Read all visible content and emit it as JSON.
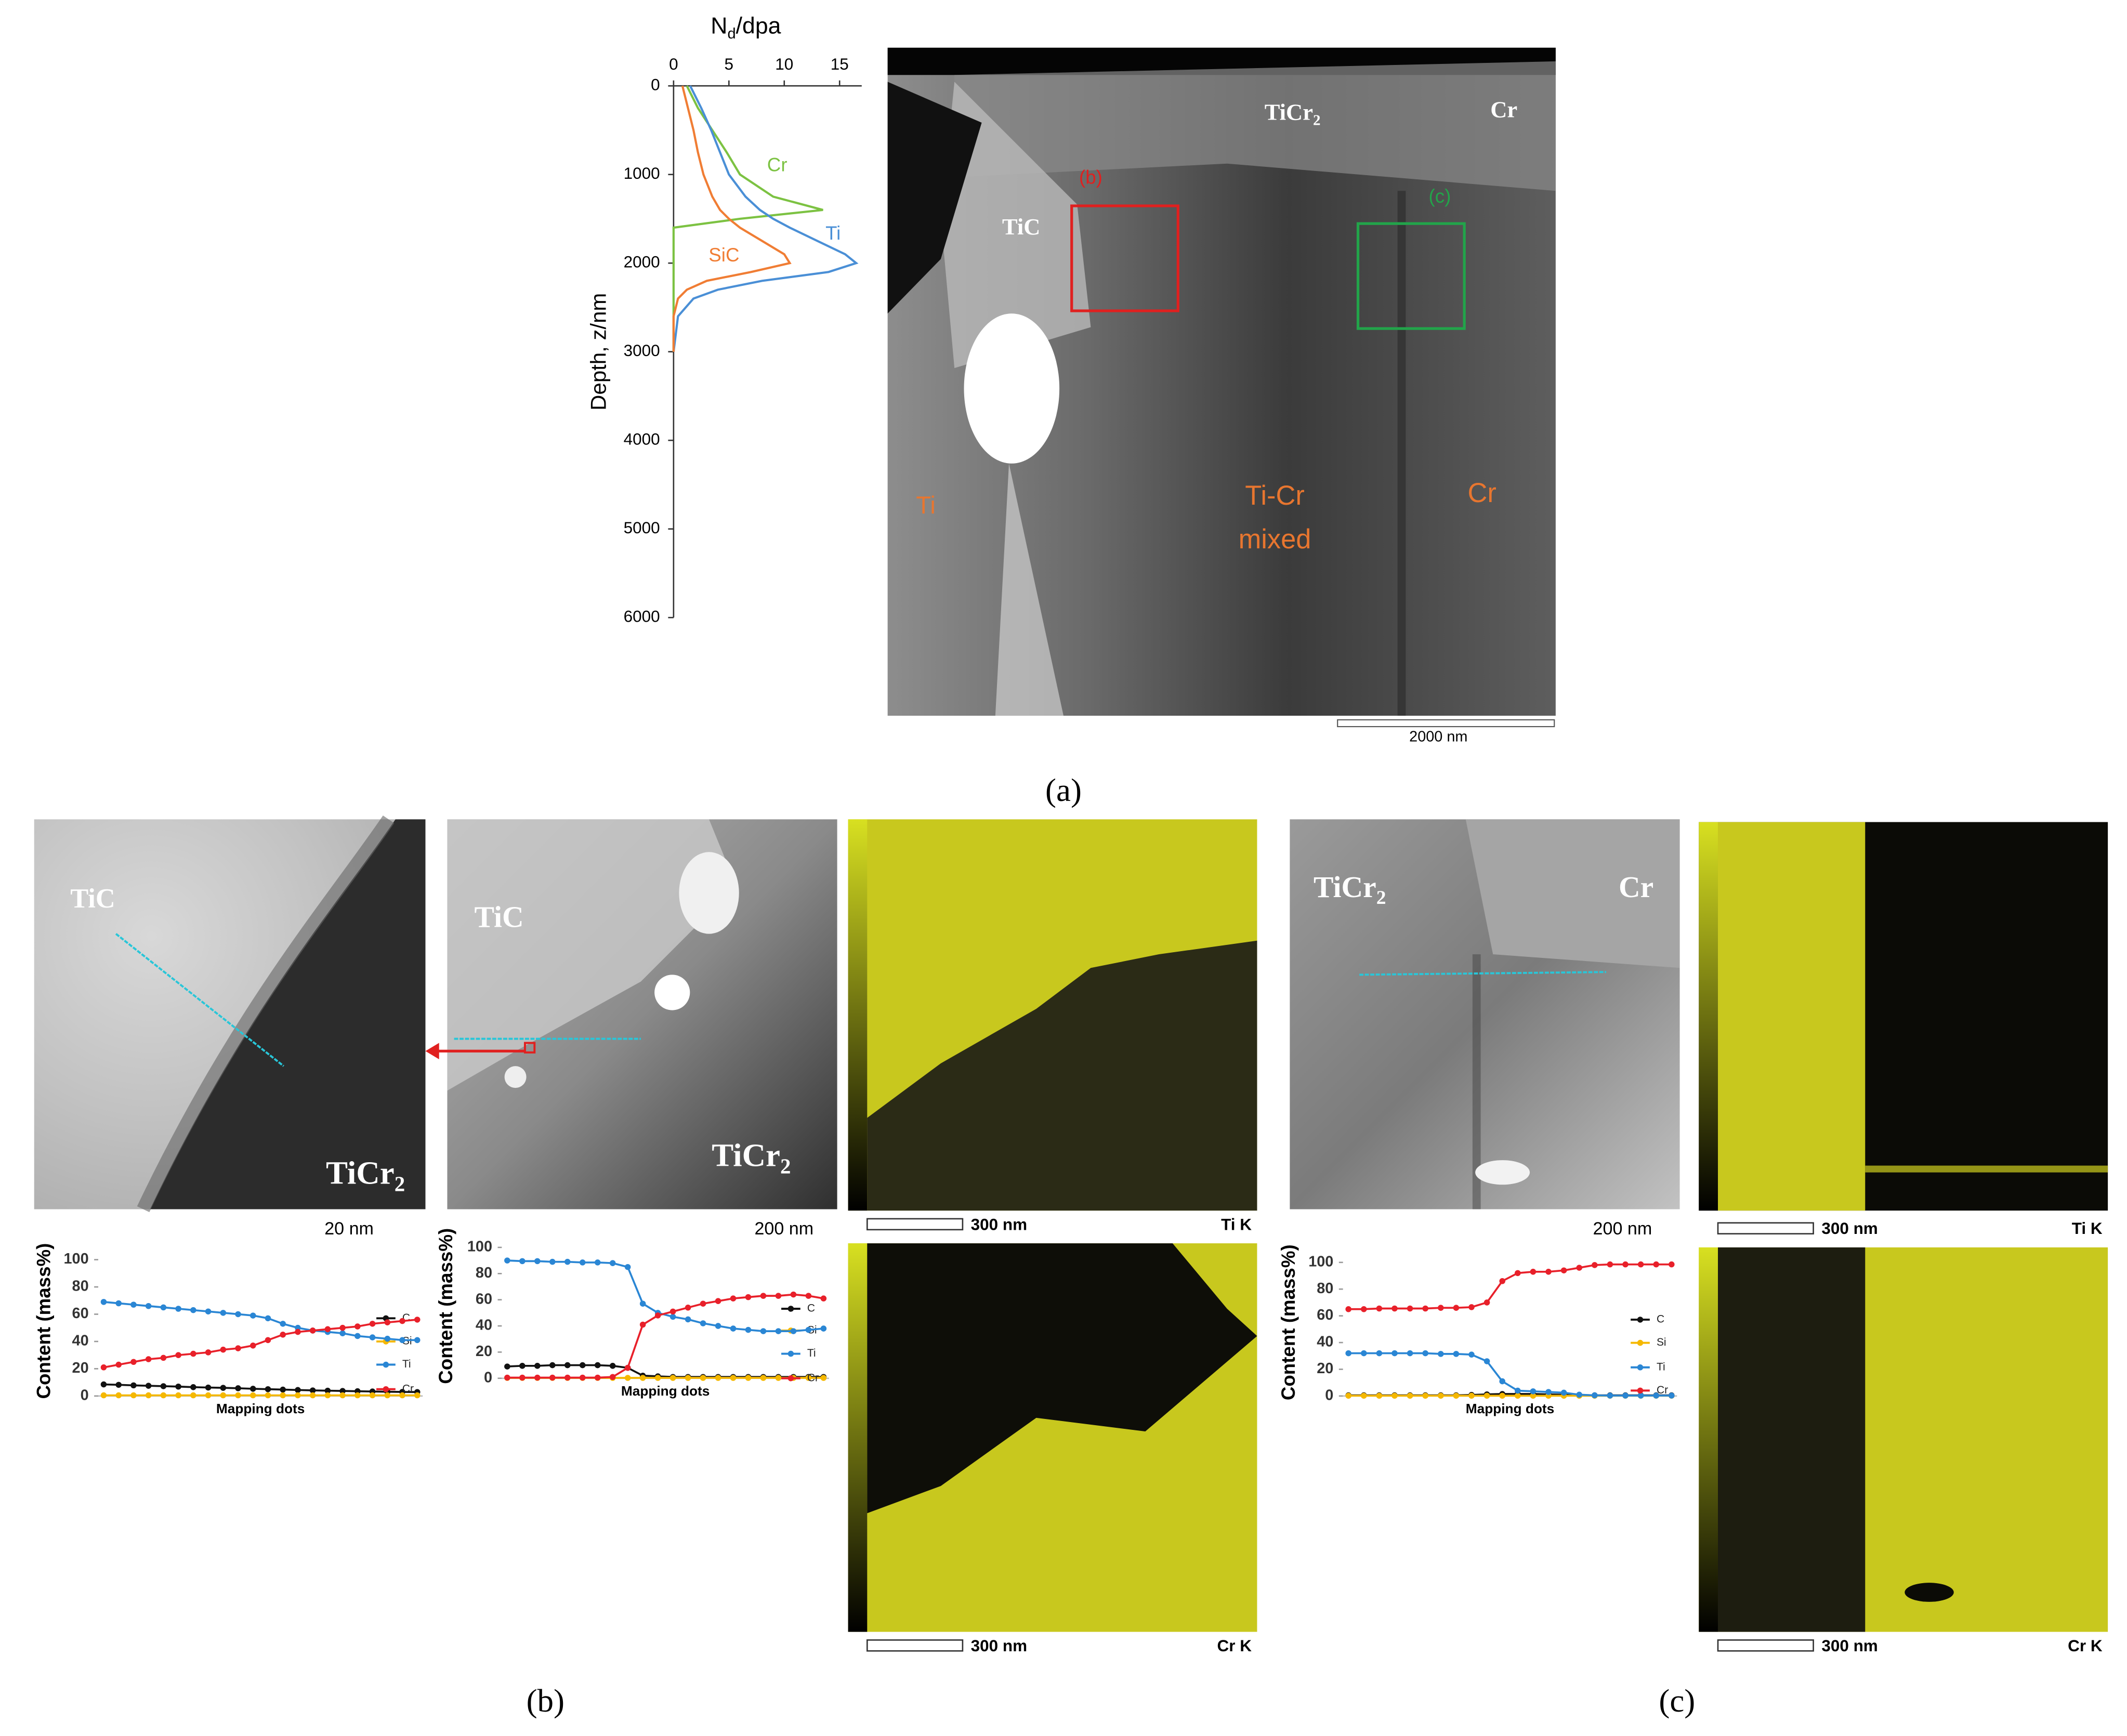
{
  "chart_data": [
    {
      "type": "line",
      "orientation": "vertical",
      "xlabel": "Depth, z/nm",
      "ylabel": {
        "text": "N",
        "sub": "d",
        "rest": "/dpa"
      },
      "x": [
        0,
        250,
        500,
        750,
        1000,
        1250,
        1400,
        1500,
        1600,
        1750,
        1900,
        2000,
        2100,
        2200,
        2300,
        2400,
        2600,
        3000
      ],
      "xlim": [
        0,
        6000
      ],
      "xticks": [
        0,
        1000,
        2000,
        3000,
        4000,
        5000,
        6000
      ],
      "ylim": [
        0,
        17
      ],
      "yticks": [
        0,
        5,
        10,
        15
      ],
      "series": [
        {
          "name": "Cr",
          "color": "#7cc242",
          "values": [
            1.2,
            2.2,
            3.5,
            4.8,
            6.0,
            9.0,
            13.5,
            6.0,
            0,
            0,
            0,
            0,
            0,
            0,
            0,
            0,
            0,
            0
          ]
        },
        {
          "name": "Ti",
          "color": "#4a8fd6",
          "values": [
            1.5,
            2.5,
            3.4,
            4.2,
            5.0,
            6.5,
            7.8,
            9,
            10.5,
            13,
            15.5,
            16.5,
            14,
            8,
            4,
            1.8,
            0.4,
            0
          ]
        },
        {
          "name": "SiC",
          "color": "#f07d34",
          "values": [
            0.8,
            1.3,
            1.8,
            2.2,
            2.7,
            3.5,
            4.2,
            5,
            6,
            8,
            10,
            10.5,
            7,
            3,
            1.2,
            0.4,
            0,
            0
          ]
        }
      ]
    },
    {
      "type": "line",
      "xlabel": "Mapping dots",
      "ylabel": "Content (mass%)",
      "ylim": [
        0,
        100
      ],
      "yticks": [
        0,
        20,
        40,
        60,
        80,
        100
      ],
      "series": [
        {
          "name": "C",
          "color": "#111111",
          "values": [
            8.5,
            8.2,
            7.8,
            7.5,
            7.2,
            6.9,
            6.5,
            6.2,
            6,
            5.7,
            5.3,
            5,
            4.7,
            4.4,
            4.1,
            3.9,
            3.7,
            3.5,
            3.3,
            3.1,
            3,
            2.9
          ]
        },
        {
          "name": "Si",
          "color": "#f5b800",
          "values": [
            0.5,
            0.5,
            0.5,
            0.5,
            0.5,
            0.5,
            0.5,
            0.5,
            0.5,
            0.5,
            0.5,
            0.5,
            0.5,
            0.5,
            0.5,
            0.5,
            0.5,
            0.5,
            0.5,
            0.5,
            0.5,
            0.5
          ]
        },
        {
          "name": "Ti",
          "color": "#2a86d4",
          "values": [
            69,
            68,
            67,
            66,
            65,
            64,
            63,
            62,
            61,
            60,
            59,
            57,
            53,
            50,
            48,
            47,
            46,
            44,
            43,
            42,
            41,
            41
          ]
        },
        {
          "name": "Cr",
          "color": "#e8202a",
          "values": [
            21,
            23,
            25,
            27,
            28,
            30,
            31,
            32,
            34,
            35,
            37,
            41,
            45,
            47,
            48,
            49,
            50,
            51,
            53,
            54,
            55,
            56
          ]
        }
      ]
    },
    {
      "type": "line",
      "xlabel": "Mapping dots",
      "ylabel": "Content (mass%)",
      "ylim": [
        0,
        100
      ],
      "yticks": [
        0,
        20,
        40,
        60,
        80,
        100
      ],
      "series": [
        {
          "name": "C",
          "color": "#111111",
          "values": [
            9,
            9.5,
            9.5,
            10,
            10,
            10,
            10,
            9.5,
            8,
            2,
            1.5,
            1,
            1,
            1,
            1,
            1,
            1,
            1,
            1,
            1,
            1,
            1
          ]
        },
        {
          "name": "Si",
          "color": "#f5b800",
          "values": [
            0.3,
            0.3,
            0.3,
            0.3,
            0.3,
            0.3,
            0.3,
            0.3,
            0.3,
            0.3,
            0.3,
            0.3,
            0.3,
            0.3,
            0.3,
            0.3,
            0.3,
            0.3,
            0.3,
            0.3,
            0.3,
            0.3
          ]
        },
        {
          "name": "Ti",
          "color": "#2a86d4",
          "values": [
            90,
            89.5,
            89.5,
            89,
            89,
            88.5,
            88.5,
            88,
            85,
            57,
            50,
            47,
            45,
            42,
            40,
            38,
            37,
            36,
            36,
            36,
            37,
            38
          ]
        },
        {
          "name": "Cr",
          "color": "#e8202a",
          "values": [
            0.5,
            0.5,
            0.5,
            0.5,
            0.5,
            0.5,
            0.5,
            1,
            8,
            41,
            48,
            51,
            54,
            57,
            59,
            61,
            62,
            63,
            63,
            64,
            63,
            61
          ]
        }
      ]
    },
    {
      "type": "line",
      "xlabel": "Mapping dots",
      "ylabel": "Content (mass%)",
      "ylim": [
        0,
        100
      ],
      "yticks": [
        0,
        20,
        40,
        60,
        80,
        100
      ],
      "series": [
        {
          "name": "C",
          "color": "#111111",
          "values": [
            0.5,
            0.5,
            0.5,
            0.5,
            0.5,
            0.5,
            0.5,
            0.5,
            0.8,
            1.2,
            1.5,
            1.5,
            1.5,
            1.2,
            1,
            0.8,
            0.5,
            0.5,
            0.5,
            0.5,
            0.5,
            0.5
          ]
        },
        {
          "name": "Si",
          "color": "#f5b800",
          "values": [
            0.2,
            0.2,
            0.2,
            0.2,
            0.2,
            0.2,
            0.2,
            0.2,
            0.2,
            0.2,
            0.2,
            0.2,
            0.2,
            0.2,
            0.2,
            0.2,
            0.2,
            0.2,
            0.2,
            0.2,
            0.2,
            0.2
          ]
        },
        {
          "name": "Ti",
          "color": "#2a86d4",
          "values": [
            32,
            32,
            32,
            32,
            32,
            32,
            31.5,
            31.5,
            31,
            26,
            11,
            4,
            3.5,
            3,
            2.5,
            1,
            0.5,
            0.3,
            0.3,
            0.3,
            0.3,
            0.3
          ]
        },
        {
          "name": "Cr",
          "color": "#e8202a",
          "values": [
            65,
            65,
            65.5,
            65.5,
            65.5,
            65.5,
            66,
            66,
            66.5,
            70,
            86,
            92,
            93,
            93,
            94,
            96,
            98,
            98.5,
            98.5,
            98.5,
            98.5,
            98.5
          ]
        }
      ]
    }
  ],
  "panels": {
    "a": {
      "label": "(a)",
      "image_labels": [
        {
          "text": "TiCr",
          "sub": "2"
        },
        "Cr",
        "(b)",
        "(c)",
        "TiC",
        "Ti",
        "Ti-Cr",
        "mixed",
        "Cr"
      ],
      "scale_bar": "2000 nm"
    },
    "b": {
      "label": "(b)",
      "image1": {
        "labels": [
          "TiC",
          {
            "text": "TiCr",
            "sub": "2"
          }
        ],
        "scale_bar": "20 nm"
      },
      "image2": {
        "labels": [
          "TiC",
          {
            "text": "TiCr",
            "sub": "2"
          }
        ],
        "scale_bar": "200 nm"
      },
      "map_ti": {
        "scale_bar": "300 nm",
        "element": "Ti K"
      },
      "map_cr": {
        "scale_bar": "300 nm",
        "element": "Cr K"
      }
    },
    "c": {
      "label": "(c)",
      "image1": {
        "labels": [
          {
            "text": "TiCr",
            "sub": "2"
          },
          "Cr"
        ],
        "scale_bar": "200 nm"
      },
      "map_ti": {
        "scale_bar": "300 nm",
        "element": "Ti K"
      },
      "map_cr": {
        "scale_bar": "300 nm",
        "element": "Cr K"
      }
    }
  }
}
